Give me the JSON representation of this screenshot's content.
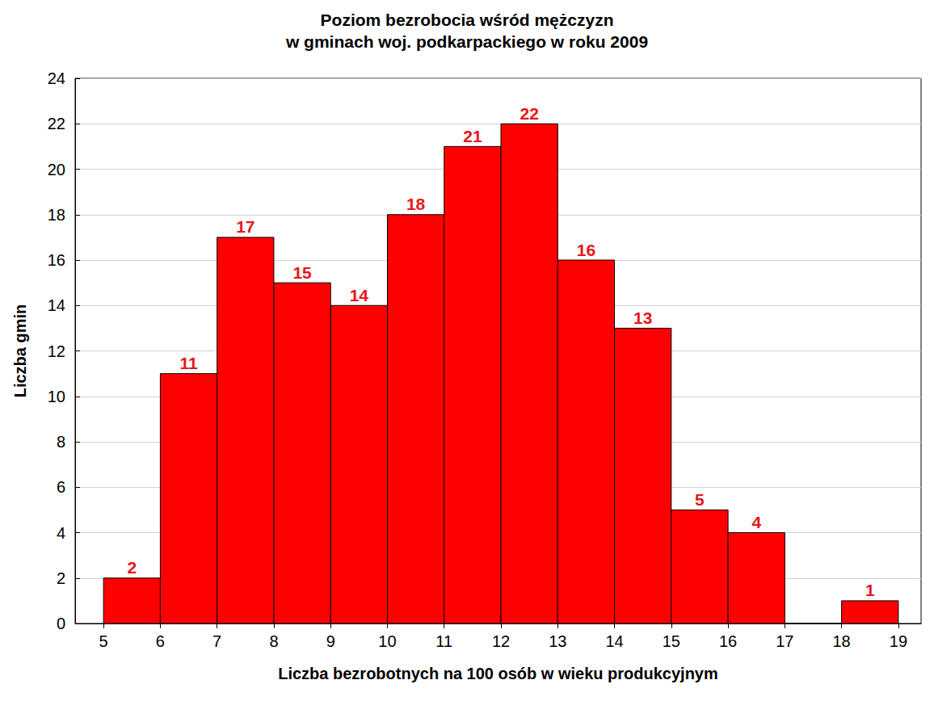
{
  "chart_data": {
    "type": "histogram",
    "title": "Poziom bezrobocia wśród mężczyzn\nw gminach woj. podkarpackiego w roku 2009",
    "x_label": "Liczba bezrobotnych na 100 osób w wieku produkcyjnym",
    "y_label": "Liczba gmin",
    "bins": [
      5,
      6,
      7,
      8,
      9,
      10,
      11,
      12,
      13,
      14,
      15,
      16,
      17,
      18,
      19
    ],
    "counts": [
      2,
      11,
      17,
      15,
      14,
      18,
      21,
      22,
      16,
      13,
      5,
      4,
      0,
      1
    ],
    "color": "#ff0000",
    "xlim": [
      4.5,
      19.4
    ],
    "xticks": [
      5,
      6,
      7,
      8,
      9,
      10,
      11,
      12,
      13,
      14,
      15,
      16,
      17,
      18,
      19
    ],
    "ylim": [
      0,
      24
    ],
    "yticks": [
      0,
      2,
      4,
      6,
      8,
      10,
      12,
      14,
      16,
      18,
      20,
      22,
      24
    ],
    "grid": true,
    "data_labels": true
  }
}
